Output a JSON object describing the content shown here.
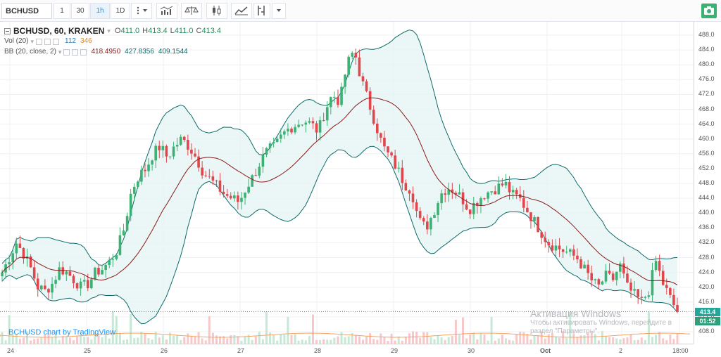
{
  "toolbar": {
    "symbol": "BCHUSD",
    "intervals": [
      "1",
      "30",
      "1h",
      "1D"
    ],
    "active_interval": "1h",
    "icons": [
      "interval-dropdown-icon",
      "indicators-icon",
      "compare-icon",
      "candles-icon",
      "area-icon",
      "drawing-icon",
      "more-dropdown-icon",
      "camera-icon"
    ],
    "accent": "#3bb273"
  },
  "legend": {
    "title": "BCHUSD, 60, KRAKEN",
    "o_label": "O",
    "o_value": "411.0",
    "h_label": "H",
    "h_value": "413.4",
    "l_label": "L",
    "l_value": "411.0",
    "c_label": "C",
    "c_value": "413.4",
    "vol_label": "Vol (20)",
    "vol_value1": "112",
    "vol_value2": "346",
    "bb_label": "BB (20, close, 2)",
    "bb_basis": "418.4950",
    "bb_upper": "427.8356",
    "bb_lower": "409.1544"
  },
  "watermark": "BCHUSD chart by TradingView",
  "activation": {
    "line1": "Активация Windows",
    "line2": "Чтобы активировать Windows, перейдите в раздел \"Параметры\"."
  },
  "price_axis": {
    "ticks": [
      "488.0",
      "484.0",
      "480.0",
      "476.0",
      "472.0",
      "468.0",
      "464.0",
      "460.0",
      "456.0",
      "452.0",
      "448.0",
      "444.0",
      "440.0",
      "436.0",
      "432.0",
      "428.0",
      "424.0",
      "420.0",
      "416.0",
      "412.0",
      "408.0"
    ],
    "last_price": "413.4",
    "countdown": "01:52"
  },
  "time_axis": {
    "ticks": [
      "24",
      "25",
      "26",
      "27",
      "28",
      "29",
      "30",
      "Oct",
      "2",
      "18:00"
    ]
  },
  "chart_data": {
    "type": "candlestick",
    "symbol": "BCHUSD",
    "interval": "60",
    "exchange": "KRAKEN",
    "ylim": [
      406,
      490
    ],
    "colors": {
      "up": "#3bb273",
      "down": "#e0474c",
      "bb_basis": "#8b1a1a",
      "bb_band": "#0e6b6b",
      "bb_fill": "#e6f4f4",
      "vol_ma": "#f4a460"
    },
    "anchors": [
      {
        "day": "24",
        "close": 424
      },
      {
        "day": "25",
        "close": 428
      },
      {
        "day": "26",
        "close": 456
      },
      {
        "day": "27",
        "close": 444
      },
      {
        "day": "28",
        "close": 464
      },
      {
        "day": "29",
        "close": 462
      },
      {
        "day": "30",
        "close": 446
      },
      {
        "day": "Oct",
        "close": 440
      },
      {
        "day": "2",
        "close": 422
      },
      {
        "day": "18:00",
        "close": 413.4
      }
    ],
    "close_path": [
      424,
      428,
      432,
      429,
      425,
      420,
      419,
      421,
      425,
      424,
      422,
      420,
      421,
      424,
      425,
      427,
      430,
      436,
      446,
      450,
      452,
      456,
      458,
      455,
      458,
      460,
      458,
      455,
      451,
      449,
      447,
      445,
      444,
      443,
      447,
      450,
      454,
      457,
      458,
      461,
      463,
      464,
      465,
      464,
      462,
      468,
      472,
      470,
      480,
      484,
      476,
      470,
      464,
      458,
      455,
      452,
      448,
      446,
      438,
      436,
      440,
      445,
      447,
      446,
      444,
      441,
      443,
      445,
      446,
      447,
      448,
      445,
      444,
      441,
      438,
      435,
      432,
      431,
      430,
      429,
      428,
      425,
      422,
      420,
      423,
      422,
      426,
      420,
      418,
      416,
      419,
      427,
      421,
      417,
      413.4
    ],
    "volume_ma": "low"
  }
}
